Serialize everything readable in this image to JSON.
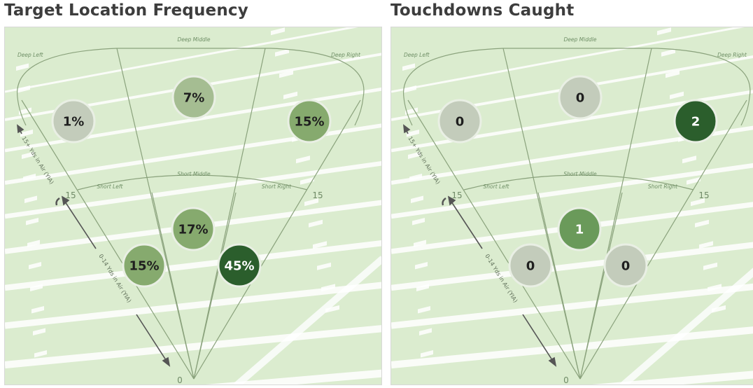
{
  "panels": [
    {
      "title": "Target Location Frequency",
      "zone_labels": {
        "deep_left": "Deep Left",
        "deep_middle": "Deep Middle",
        "deep_right": "Deep Right",
        "short_left": "Short Left",
        "short_middle": "Short Middle",
        "short_right": "Short Right"
      },
      "yard_labels": {
        "left_15": "15",
        "right_15": "15",
        "origin": "0"
      },
      "axis_labels": {
        "deep": "15+ Yds in Air (YIA)",
        "short": "0-14 Yds in Air (YIA)"
      }
    },
    {
      "title": "Touchdowns Caught",
      "zone_labels": {
        "deep_left": "Deep Left",
        "deep_middle": "Deep Middle",
        "deep_right": "Deep Right",
        "short_left": "Short Left",
        "short_middle": "Short Middle",
        "short_right": "Short Right"
      },
      "yard_labels": {
        "left_15": "15",
        "right_15": "15",
        "origin": "0"
      },
      "axis_labels": {
        "deep": "15+ Yds in Air (YIA)",
        "short": "0-14 Yds in Air (YIA)"
      }
    }
  ],
  "chart_data": [
    {
      "type": "zone-bubble",
      "title": "Target Location Frequency",
      "unit": "%",
      "zones": [
        {
          "zone": "Deep Left",
          "value": 1,
          "label": "1%"
        },
        {
          "zone": "Deep Middle",
          "value": 7,
          "label": "7%"
        },
        {
          "zone": "Deep Right",
          "value": 15,
          "label": "15%"
        },
        {
          "zone": "Short Left",
          "value": 15,
          "label": "15%"
        },
        {
          "zone": "Short Middle",
          "value": 17,
          "label": "17%"
        },
        {
          "zone": "Short Right",
          "value": 45,
          "label": "45%"
        }
      ]
    },
    {
      "type": "zone-bubble",
      "title": "Touchdowns Caught",
      "unit": "count",
      "zones": [
        {
          "zone": "Deep Left",
          "value": 0,
          "label": "0"
        },
        {
          "zone": "Deep Middle",
          "value": 0,
          "label": "0"
        },
        {
          "zone": "Deep Right",
          "value": 2,
          "label": "2"
        },
        {
          "zone": "Short Left",
          "value": 0,
          "label": "0"
        },
        {
          "zone": "Short Middle",
          "value": 1,
          "label": "1"
        },
        {
          "zone": "Short Right",
          "value": 0,
          "label": "0"
        }
      ]
    }
  ],
  "colors": {
    "field_background": "#d3e8c5",
    "field_lines": "#ffffff",
    "zone_outline": "#8aa27c",
    "color_scale": [
      "#c3ccbb",
      "#a5bd92",
      "#86aa6e",
      "#6a9a5a",
      "#4f8a46",
      "#2b5e2c"
    ],
    "bubble_border": "#e9efe4",
    "text_dark": "#1f1f1f",
    "text_light": "#ffffff"
  }
}
